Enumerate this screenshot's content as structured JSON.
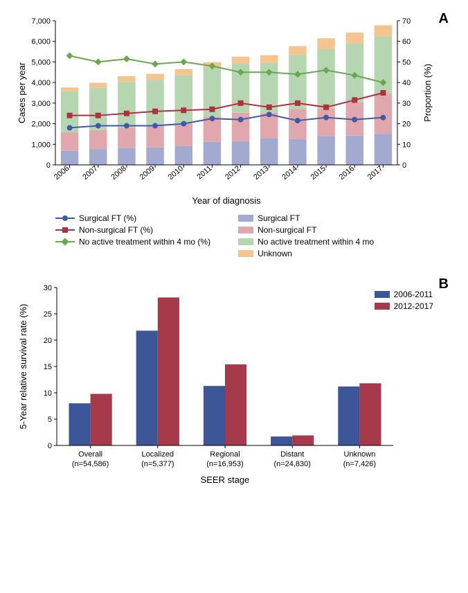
{
  "panelA": {
    "letter": "A",
    "xlabel": "Year of diagnosis",
    "ylabel_left": "Cases per year",
    "ylabel_right": "Proportion (%)",
    "years": [
      "2006",
      "2007",
      "2008",
      "2009",
      "2010",
      "2011",
      "2012",
      "2013",
      "2014",
      "2015",
      "2016",
      "2017"
    ],
    "left_ylim": [
      0,
      7000
    ],
    "left_ytick_step": 1000,
    "right_ylim": [
      0,
      70
    ],
    "right_ytick_step": 10,
    "bar_width": 0.62,
    "bars": {
      "surgical_ft": [
        680,
        770,
        830,
        850,
        920,
        1120,
        1150,
        1280,
        1250,
        1400,
        1420,
        1500
      ],
      "non_surgical_ft": [
        900,
        920,
        980,
        1020,
        1080,
        1230,
        1380,
        1250,
        1470,
        1350,
        1620,
        1970
      ],
      "no_active": [
        2000,
        2050,
        2220,
        2250,
        2350,
        2360,
        2380,
        2420,
        2620,
        2870,
        2870,
        2780
      ],
      "unknown": [
        180,
        250,
        280,
        300,
        300,
        280,
        350,
        380,
        430,
        530,
        520,
        530
      ]
    },
    "lines": {
      "surgical_ft_pct": [
        18,
        19,
        19,
        19,
        20,
        22.5,
        22,
        24.5,
        21.5,
        23,
        22,
        23
      ],
      "non_surgical_ft_pct": [
        24,
        24,
        25,
        26,
        26.5,
        27,
        30,
        28,
        30,
        28,
        31.5,
        35
      ],
      "no_active_pct": [
        53,
        50,
        51.5,
        49,
        50,
        48,
        45,
        45,
        44,
        46,
        43.5,
        40
      ]
    },
    "colors": {
      "surgical_ft_bar": "#a3aacf",
      "non_surgical_ft_bar": "#e0a8ac",
      "no_active_bar": "#b6d6b2",
      "unknown_bar": "#f5c58f",
      "surgical_ft_line": "#3e5aa9",
      "non_surgical_ft_line": "#b0313e",
      "no_active_line": "#6aa84f",
      "axis": "#000000"
    },
    "legend_left": [
      {
        "label": "Surgical FT (%)",
        "type": "line",
        "color": "#3e5aa9",
        "marker": "circle"
      },
      {
        "label": "Non-surgical FT (%)",
        "type": "line",
        "color": "#b0313e",
        "marker": "square"
      },
      {
        "label": "No active treatment within 4 mo (%)",
        "type": "line",
        "color": "#6aa84f",
        "marker": "diamond"
      }
    ],
    "legend_right": [
      {
        "label": "Surgical FT",
        "type": "swatch",
        "color": "#a3aacf"
      },
      {
        "label": "Non-surgical FT",
        "type": "swatch",
        "color": "#e0a8ac"
      },
      {
        "label": "No active treatment within 4 mo",
        "type": "swatch",
        "color": "#b6d6b2"
      },
      {
        "label": "Unknown",
        "type": "swatch",
        "color": "#f5c58f"
      }
    ]
  },
  "panelB": {
    "letter": "B",
    "xlabel": "SEER stage",
    "ylabel": "5-Year relative survival rate (%)",
    "ylim": [
      0,
      30
    ],
    "ytick_step": 5,
    "categories": [
      "Overall",
      "Localized",
      "Regional",
      "Distant",
      "Unknown"
    ],
    "cat_sub": [
      "(n=54,586)",
      "(n=5,377)",
      "(n=16,953)",
      "(n=24,830)",
      "(n=7,426)"
    ],
    "series": [
      {
        "name": "2006-2011",
        "color": "#3c5697",
        "values": [
          8.0,
          21.8,
          11.3,
          1.7,
          11.2
        ]
      },
      {
        "name": "2012-2017",
        "color": "#a63a4b",
        "values": [
          9.8,
          28.1,
          15.4,
          1.9,
          11.8
        ]
      }
    ],
    "bar_width": 0.32,
    "bg": "#ffffff"
  }
}
